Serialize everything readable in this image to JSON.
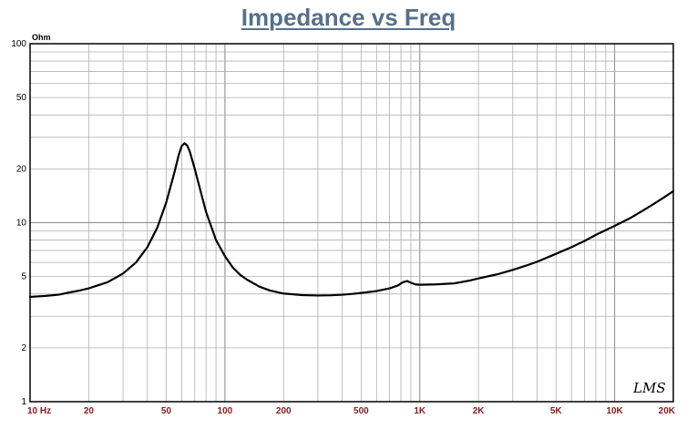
{
  "chart_data": {
    "type": "line",
    "title": "Impedance vs Freq",
    "y_unit_label": "Ohm",
    "x_scale": "log",
    "y_scale": "log",
    "xlim": [
      10,
      20000
    ],
    "ylim": [
      1,
      100
    ],
    "grid": true,
    "x_tick_labels": [
      {
        "value": 10,
        "label": "10 Hz"
      },
      {
        "value": 20,
        "label": "20"
      },
      {
        "value": 50,
        "label": "50"
      },
      {
        "value": 100,
        "label": "100"
      },
      {
        "value": 200,
        "label": "200"
      },
      {
        "value": 500,
        "label": "500"
      },
      {
        "value": 1000,
        "label": "1K"
      },
      {
        "value": 2000,
        "label": "2K"
      },
      {
        "value": 5000,
        "label": "5K"
      },
      {
        "value": 10000,
        "label": "10K"
      },
      {
        "value": 20000,
        "label": "20K"
      }
    ],
    "y_tick_labels": [
      {
        "value": 1,
        "label": "1"
      },
      {
        "value": 2,
        "label": "2"
      },
      {
        "value": 5,
        "label": "5"
      },
      {
        "value": 10,
        "label": "10"
      },
      {
        "value": 20,
        "label": "20"
      },
      {
        "value": 50,
        "label": "50"
      },
      {
        "value": 100,
        "label": "100"
      }
    ],
    "logo_text": "LMS",
    "colors": {
      "title": "#56708a",
      "x_tick_labels": "#8b1a1a",
      "curve": "#000000",
      "grid": "#b0b0b0"
    },
    "series": [
      {
        "points": [
          [
            10,
            3.85
          ],
          [
            12,
            3.9
          ],
          [
            14,
            3.96
          ],
          [
            16,
            4.08
          ],
          [
            18,
            4.18
          ],
          [
            20,
            4.3
          ],
          [
            25,
            4.65
          ],
          [
            30,
            5.2
          ],
          [
            35,
            6.0
          ],
          [
            40,
            7.3
          ],
          [
            45,
            9.4
          ],
          [
            50,
            13.0
          ],
          [
            55,
            19.0
          ],
          [
            58,
            24.0
          ],
          [
            60,
            26.8
          ],
          [
            62,
            27.8
          ],
          [
            64,
            27.0
          ],
          [
            66,
            25.0
          ],
          [
            70,
            20.0
          ],
          [
            75,
            15.0
          ],
          [
            80,
            11.5
          ],
          [
            90,
            8.0
          ],
          [
            100,
            6.5
          ],
          [
            110,
            5.6
          ],
          [
            120,
            5.1
          ],
          [
            130,
            4.8
          ],
          [
            150,
            4.4
          ],
          [
            170,
            4.18
          ],
          [
            200,
            4.02
          ],
          [
            250,
            3.94
          ],
          [
            300,
            3.92
          ],
          [
            350,
            3.93
          ],
          [
            400,
            3.96
          ],
          [
            450,
            4.0
          ],
          [
            500,
            4.05
          ],
          [
            600,
            4.15
          ],
          [
            700,
            4.3
          ],
          [
            770,
            4.45
          ],
          [
            820,
            4.65
          ],
          [
            860,
            4.72
          ],
          [
            900,
            4.62
          ],
          [
            950,
            4.52
          ],
          [
            1000,
            4.5
          ],
          [
            1200,
            4.52
          ],
          [
            1500,
            4.58
          ],
          [
            1800,
            4.75
          ],
          [
            2000,
            4.88
          ],
          [
            2500,
            5.15
          ],
          [
            3000,
            5.45
          ],
          [
            3500,
            5.75
          ],
          [
            4000,
            6.05
          ],
          [
            5000,
            6.7
          ],
          [
            6000,
            7.3
          ],
          [
            7000,
            7.9
          ],
          [
            8000,
            8.55
          ],
          [
            10000,
            9.6
          ],
          [
            12000,
            10.6
          ],
          [
            14000,
            11.7
          ],
          [
            16000,
            12.8
          ],
          [
            18000,
            13.9
          ],
          [
            20000,
            15.0
          ]
        ]
      }
    ]
  }
}
